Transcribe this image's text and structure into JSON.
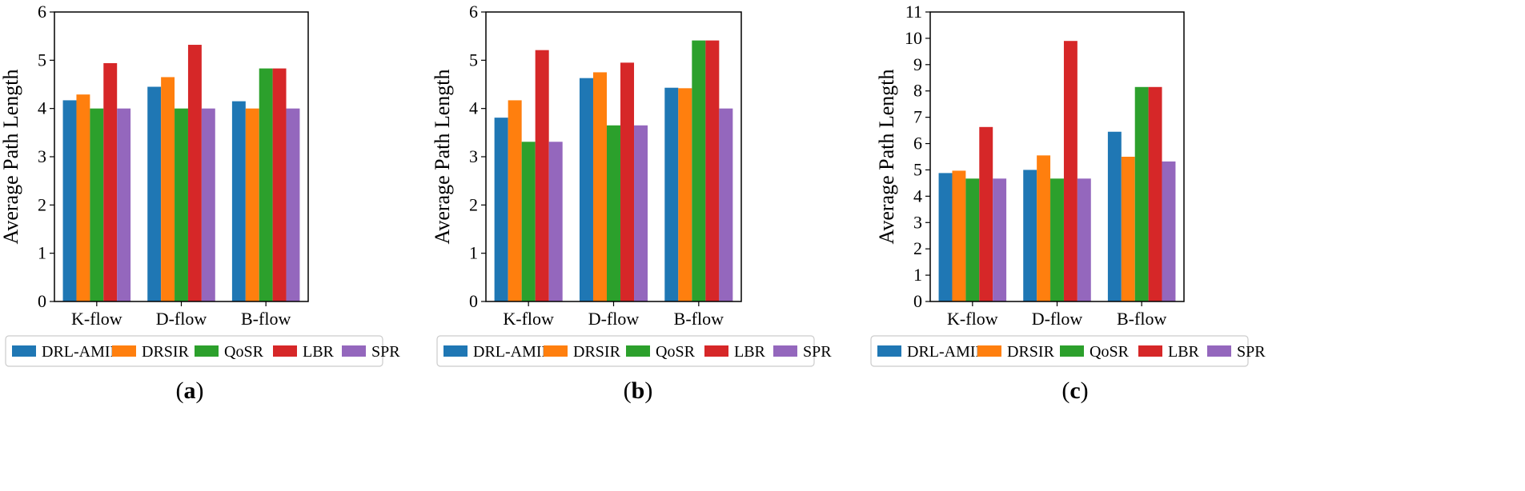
{
  "series_colors": [
    "#1f77b4",
    "#ff7f0e",
    "#2ca02c",
    "#d62728",
    "#9467bd"
  ],
  "chart_data": [
    {
      "type": "bar",
      "panel_label": "a",
      "categories": [
        "K-flow",
        "D-flow",
        "B-flow"
      ],
      "ylabel": "Average Path Length",
      "ylim": [
        0,
        6
      ],
      "yticks": [
        "0",
        "1",
        "2",
        "3",
        "4",
        "5",
        "6"
      ],
      "legend_position": "bottom",
      "series": [
        {
          "name": "DRL-AMIR",
          "values": [
            4.17,
            4.45,
            4.15
          ]
        },
        {
          "name": "DRSIR",
          "values": [
            4.29,
            4.65,
            4.0
          ]
        },
        {
          "name": "QoSR",
          "values": [
            4.0,
            4.0,
            4.83
          ]
        },
        {
          "name": "LBR",
          "values": [
            4.94,
            5.32,
            4.83
          ]
        },
        {
          "name": "SPR",
          "values": [
            4.0,
            4.0,
            4.0
          ]
        }
      ]
    },
    {
      "type": "bar",
      "panel_label": "b",
      "categories": [
        "K-flow",
        "D-flow",
        "B-flow"
      ],
      "ylabel": "Average Path Length",
      "ylim": [
        0,
        6
      ],
      "yticks": [
        "0",
        "1",
        "2",
        "3",
        "4",
        "5",
        "6"
      ],
      "legend_position": "bottom",
      "series": [
        {
          "name": "DRL-AMIR",
          "values": [
            3.81,
            4.63,
            4.43
          ]
        },
        {
          "name": "DRSIR",
          "values": [
            4.17,
            4.75,
            4.42
          ]
        },
        {
          "name": "QoSR",
          "values": [
            3.31,
            3.65,
            5.41
          ]
        },
        {
          "name": "LBR",
          "values": [
            5.21,
            4.95,
            5.41
          ]
        },
        {
          "name": "SPR",
          "values": [
            3.31,
            3.65,
            4.0
          ]
        }
      ]
    },
    {
      "type": "bar",
      "panel_label": "c",
      "categories": [
        "K-flow",
        "D-flow",
        "B-flow"
      ],
      "ylabel": "Average Path Length",
      "ylim": [
        0,
        11
      ],
      "yticks": [
        "0",
        "1",
        "2",
        "3",
        "4",
        "5",
        "6",
        "7",
        "8",
        "9",
        "10",
        "11"
      ],
      "legend_position": "bottom",
      "series": [
        {
          "name": "DRL-AMIR",
          "values": [
            4.88,
            5.0,
            6.45
          ]
        },
        {
          "name": "DRSIR",
          "values": [
            4.97,
            5.55,
            5.5
          ]
        },
        {
          "name": "QoSR",
          "values": [
            4.67,
            4.67,
            8.15
          ]
        },
        {
          "name": "LBR",
          "values": [
            6.63,
            9.9,
            8.15
          ]
        },
        {
          "name": "SPR",
          "values": [
            4.67,
            4.67,
            5.32
          ]
        }
      ]
    }
  ]
}
